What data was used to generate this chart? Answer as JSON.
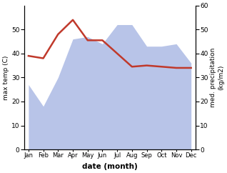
{
  "months": [
    "Jan",
    "Feb",
    "Mar",
    "Apr",
    "May",
    "Jun",
    "Jul",
    "Aug",
    "Sep",
    "Oct",
    "Nov",
    "Dec"
  ],
  "max_temp": [
    39,
    38,
    48,
    54,
    45.5,
    45.5,
    40,
    34.5,
    35,
    34.5,
    34,
    34
  ],
  "precipitation": [
    27,
    18,
    30,
    46,
    47,
    44,
    52,
    52,
    43,
    43,
    44,
    36
  ],
  "temp_color": "#c0392b",
  "precip_fill_color": "#b8c4e8",
  "left_ylim": [
    0,
    60
  ],
  "right_ylim": [
    0,
    60
  ],
  "left_yticks": [
    0,
    10,
    20,
    30,
    40,
    50
  ],
  "right_yticks": [
    0,
    10,
    20,
    30,
    40,
    50,
    60
  ],
  "xlabel": "date (month)",
  "ylabel_left": "max temp (C)",
  "ylabel_right": "med. precipitation\n(kg/m2)"
}
